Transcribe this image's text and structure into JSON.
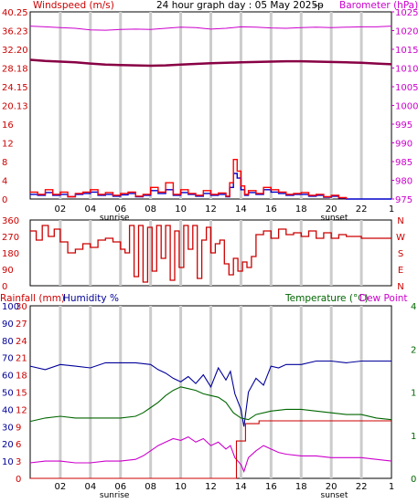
{
  "header": {
    "windspeed_label": "Windspeed (m/s)",
    "title": "24 hour graph day : 05 May 2025p",
    "separator": "---",
    "barometer_label": "Barometer (hPa)"
  },
  "panel3_header": {
    "rainfall_label": "Rainfall (mm)",
    "humidity_label": "Humidity %",
    "temperature_label": "Temperature (°C)",
    "dewpoint_label": "Dew Point"
  },
  "colors": {
    "wind": "#ff0000",
    "gust": "#0000cc",
    "barometer": "#cc00cc",
    "barometer_line": "#880044",
    "direction": "#cc0000",
    "humidity": "#000099",
    "temperature": "#006600",
    "dewpoint": "#cc00cc",
    "rain": "#cc0000",
    "grid": "#cccccc"
  },
  "chart_data": [
    {
      "type": "line",
      "title": "24 hour graph day : 05 May 2025p",
      "x_ticks": [
        "02",
        "04",
        "06",
        "08",
        "10",
        "12",
        "14",
        "16",
        "18",
        "20",
        "22",
        "1"
      ],
      "x_annotations": [
        {
          "label": "sunrise",
          "hour": 5.6
        },
        {
          "label": "sunset",
          "hour": 20.2
        }
      ],
      "x_range": [
        0,
        24
      ],
      "y_left_ticks": [
        "0",
        "4",
        "8",
        "12",
        "16",
        "20.13",
        "24.15",
        "28.18",
        "32.20",
        "36.23",
        "40.25"
      ],
      "y_left_range": [
        0,
        40.25
      ],
      "y_right_ticks": [
        "975",
        "980",
        "985",
        "990",
        "995",
        "1000",
        "1005",
        "1010",
        "1015",
        "1020",
        "1025"
      ],
      "y_right_range": [
        975,
        1025
      ],
      "series": [
        {
          "name": "Barometer",
          "axis": "right",
          "x": [
            0,
            1,
            2,
            3,
            4,
            5,
            6,
            7,
            8,
            9,
            10,
            11,
            12,
            13,
            14,
            15,
            16,
            17,
            18,
            19,
            20,
            21,
            22,
            23,
            24
          ],
          "values": [
            1021.2,
            1021.0,
            1020.8,
            1020.6,
            1020.2,
            1020.1,
            1020.3,
            1020.4,
            1020.3,
            1020.6,
            1020.9,
            1020.8,
            1020.4,
            1020.6,
            1021.0,
            1020.9,
            1020.7,
            1020.6,
            1020.8,
            1020.9,
            1020.8,
            1020.9,
            1021.0,
            1021.0,
            1021.2
          ]
        },
        {
          "name": "Barometer trend",
          "axis": "right",
          "x": [
            0,
            1,
            2,
            3,
            4,
            5,
            6,
            7,
            8,
            9,
            10,
            11,
            12,
            13,
            14,
            15,
            16,
            17,
            18,
            19,
            20,
            21,
            22,
            23,
            24
          ],
          "values": [
            1012.2,
            1011.9,
            1011.7,
            1011.5,
            1011.2,
            1010.9,
            1010.8,
            1010.7,
            1010.6,
            1010.7,
            1010.9,
            1011.1,
            1011.3,
            1011.4,
            1011.5,
            1011.6,
            1011.7,
            1011.8,
            1011.8,
            1011.7,
            1011.6,
            1011.5,
            1011.4,
            1011.2,
            1011.0
          ]
        },
        {
          "name": "Wind Speed",
          "axis": "left",
          "x": [
            0,
            0.5,
            1,
            1.5,
            2,
            2.5,
            3,
            3.5,
            4,
            4.5,
            5,
            5.5,
            6,
            6.5,
            7,
            7.5,
            8,
            8.5,
            9,
            9.5,
            10,
            10.5,
            11,
            11.5,
            12,
            12.5,
            13,
            13.25,
            13.5,
            13.75,
            14,
            14.25,
            14.5,
            15,
            15.5,
            16,
            16.5,
            17,
            17.5,
            18,
            18.5,
            19,
            19.5,
            20,
            20.5,
            21
          ],
          "values": [
            1.5,
            1.0,
            2.0,
            1.0,
            1.5,
            0.5,
            1.2,
            1.5,
            2.0,
            1.0,
            1.4,
            0.8,
            1.2,
            1.5,
            0.6,
            1.0,
            2.5,
            1.5,
            3.5,
            1.0,
            2.0,
            1.2,
            0.8,
            1.8,
            1.0,
            1.3,
            0.6,
            3.5,
            8.5,
            6.0,
            2.8,
            1.0,
            1.8,
            1.2,
            2.5,
            2.0,
            1.5,
            1.0,
            1.2,
            1.4,
            0.8,
            1.0,
            0.5,
            0.8,
            0.3,
            0.0
          ]
        },
        {
          "name": "Wind Gust",
          "axis": "left",
          "x": [
            0,
            0.5,
            1,
            1.5,
            2,
            2.5,
            3,
            3.5,
            4,
            4.5,
            5,
            5.5,
            6,
            6.5,
            7,
            7.5,
            8,
            8.5,
            9,
            9.5,
            10,
            10.5,
            11,
            11.5,
            12,
            12.5,
            13,
            13.25,
            13.5,
            13.75,
            14,
            14.25,
            14.5,
            15,
            15.5,
            16,
            16.5,
            17,
            17.5,
            18,
            18.5,
            19,
            19.5,
            20,
            20.5,
            21,
            22,
            23,
            24
          ],
          "values": [
            1.0,
            0.8,
            1.4,
            0.8,
            1.0,
            0.5,
            1.0,
            1.2,
            1.5,
            0.8,
            1.0,
            0.6,
            0.9,
            1.2,
            0.5,
            0.8,
            1.8,
            1.2,
            2.0,
            0.8,
            1.4,
            1.0,
            0.6,
            1.2,
            0.8,
            1.0,
            0.5,
            2.5,
            5.5,
            4.5,
            2.0,
            0.8,
            1.4,
            1.0,
            2.0,
            1.5,
            1.2,
            0.8,
            1.0,
            1.0,
            0.6,
            0.8,
            0.4,
            0.6,
            0.2,
            0.0,
            0.0,
            0.0,
            0.0
          ]
        }
      ]
    },
    {
      "type": "line",
      "y_left_ticks": [
        "0",
        "90",
        "180",
        "270",
        "360"
      ],
      "y_left_range": [
        0,
        360
      ],
      "y_right_ticks": [
        "N",
        "W",
        "S",
        "E",
        "N"
      ],
      "series": [
        {
          "name": "Wind Direction",
          "x": [
            0,
            0.4,
            0.8,
            1.2,
            1.6,
            2,
            2.5,
            3,
            3.5,
            4,
            4.5,
            5,
            5.5,
            6,
            6.3,
            6.6,
            6.9,
            7.2,
            7.5,
            7.8,
            8.1,
            8.4,
            8.7,
            9,
            9.3,
            9.6,
            9.9,
            10.2,
            10.5,
            10.8,
            11.1,
            11.4,
            11.7,
            12,
            12.3,
            12.6,
            12.9,
            13.2,
            13.5,
            13.8,
            14.1,
            14.4,
            14.7,
            15,
            15.5,
            16,
            16.5,
            17,
            17.5,
            18,
            18.5,
            19,
            19.5,
            20,
            20.5,
            21,
            22,
            23,
            24
          ],
          "values": [
            300,
            250,
            330,
            270,
            310,
            240,
            180,
            200,
            230,
            210,
            250,
            260,
            240,
            200,
            180,
            330,
            50,
            330,
            20,
            320,
            80,
            330,
            150,
            330,
            30,
            300,
            100,
            330,
            200,
            330,
            40,
            250,
            320,
            180,
            230,
            250,
            120,
            60,
            150,
            80,
            130,
            100,
            160,
            280,
            300,
            260,
            310,
            280,
            290,
            270,
            300,
            260,
            290,
            260,
            280,
            270,
            260,
            260,
            260
          ]
        }
      ]
    },
    {
      "type": "line",
      "x_ticks": [
        "02",
        "04",
        "06",
        "08",
        "10",
        "12",
        "14",
        "16",
        "18",
        "20",
        "22",
        "1"
      ],
      "x_annotations": [
        {
          "label": "sunrise",
          "hour": 5.6
        },
        {
          "label": "sunset",
          "hour": 20.2
        }
      ],
      "y_rain_ticks": [
        "0",
        "3",
        "6",
        "9",
        "12",
        "15",
        "18",
        "21",
        "24",
        "27",
        "30"
      ],
      "y_rain_range": [
        0,
        30
      ],
      "y_humidity_ticks": [
        "10",
        "20",
        "30",
        "40",
        "50",
        "60",
        "70",
        "80",
        "90",
        "100"
      ],
      "y_humidity_range": [
        0,
        100
      ],
      "y_temp_ticks": [
        "4",
        "2",
        "1",
        "1",
        "0"
      ],
      "series": [
        {
          "name": "Humidity",
          "axis": "humidity",
          "x": [
            0,
            1,
            2,
            3,
            4,
            5,
            6,
            7,
            8,
            8.5,
            9,
            9.5,
            10,
            10.5,
            11,
            11.5,
            12,
            12.5,
            13,
            13.3,
            13.6,
            14,
            14.2,
            14.5,
            15,
            15.5,
            16,
            16.5,
            17,
            18,
            19,
            20,
            21,
            22,
            23,
            24
          ],
          "values": [
            65,
            63,
            66,
            65,
            64,
            67,
            67,
            67,
            66,
            63,
            61,
            58,
            56,
            59,
            55,
            60,
            53,
            64,
            57,
            62,
            49,
            40,
            30,
            50,
            58,
            54,
            65,
            64,
            66,
            66,
            68,
            68,
            67,
            68,
            68,
            68
          ]
        },
        {
          "name": "Temperature",
          "axis": "temp",
          "x": [
            0,
            1,
            2,
            3,
            4,
            5,
            6,
            7,
            7.5,
            8,
            8.5,
            9,
            9.5,
            10,
            10.5,
            11,
            11.5,
            12,
            12.5,
            13,
            13.5,
            14,
            14.5,
            15,
            16,
            17,
            18,
            19,
            20,
            21,
            22,
            23,
            24
          ],
          "values": [
            33,
            35,
            36,
            35,
            35,
            35,
            35,
            36,
            38,
            41,
            44,
            48,
            51,
            53,
            52,
            51,
            49,
            48,
            47,
            44,
            38,
            35,
            34,
            37,
            39,
            40,
            40,
            39,
            38,
            37,
            37,
            35,
            34
          ]
        },
        {
          "name": "Dew Point",
          "axis": "temp",
          "x": [
            0,
            1,
            2,
            3,
            4,
            5,
            6,
            7,
            7.5,
            8,
            8.5,
            9,
            9.5,
            10,
            10.5,
            11,
            11.5,
            12,
            12.5,
            13,
            13.3,
            13.6,
            14,
            14.2,
            14.5,
            15,
            15.5,
            16,
            16.5,
            17,
            18,
            19,
            20,
            21,
            22,
            23,
            24
          ],
          "values": [
            9,
            10,
            10,
            9,
            9,
            10,
            10,
            11,
            13,
            16,
            19,
            21,
            23,
            22,
            24,
            21,
            23,
            19,
            21,
            17,
            19,
            12,
            8,
            4,
            12,
            16,
            19,
            17,
            15,
            14,
            13,
            13,
            12,
            12,
            12,
            11,
            10
          ]
        },
        {
          "name": "Rainfall",
          "axis": "rain",
          "x": [
            0,
            13.7,
            13.7,
            14.3,
            14.3,
            15.2,
            15.2,
            24
          ],
          "values": [
            0,
            0,
            6.5,
            6.5,
            9.5,
            9.5,
            10,
            10
          ]
        }
      ]
    }
  ]
}
